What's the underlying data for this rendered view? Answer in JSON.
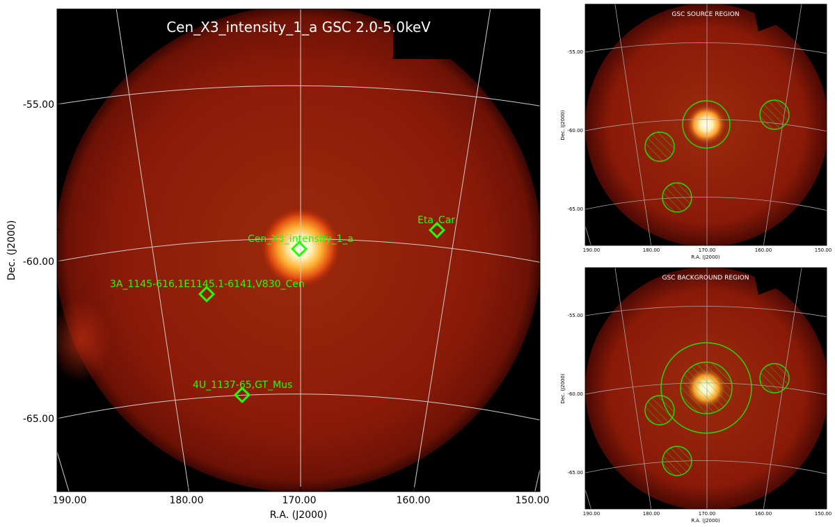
{
  "main": {
    "title": "Cen_X3_intensity_1_a GSC 2.0-5.0keV",
    "ylabel": "Dec. (J2000)",
    "xlabel": "R.A. (J2000)",
    "x_ticks": [
      "190.00",
      "180.00",
      "170.00",
      "160.00",
      "150.00"
    ],
    "y_ticks": [
      "-55.00",
      "-60.00",
      "-65.00"
    ],
    "sources": [
      {
        "label": "Eta_Car",
        "ra": 158.0,
        "dec": -59.0
      },
      {
        "label": "Cen_X3_intensity_1_a",
        "ra": 170.3,
        "dec": -59.6
      },
      {
        "label": "3A_1145-616,1E1145.1-6141,V830_Cen",
        "ra": 178.3,
        "dec": -61.1
      },
      {
        "label": "4U_1137-65,GT_Mus",
        "ra": 175.2,
        "dec": -64.2
      }
    ]
  },
  "source_region": {
    "title": "GSC SOURCE REGION",
    "ylabel": "Dec. (J2000)",
    "xlabel": "R.A. (J2000)",
    "x_ticks": [
      "190.00",
      "180.00",
      "170.00",
      "160.00",
      "150.00"
    ],
    "y_ticks": [
      "-55.00",
      "-60.00",
      "-65.00"
    ]
  },
  "background_region": {
    "title": "GSC BACKGROUND REGION",
    "ylabel": "Dec. (J2000)",
    "xlabel": "R.A. (J2000)",
    "x_ticks": [
      "190.00",
      "180.00",
      "170.00",
      "160.00",
      "150.00"
    ],
    "y_ticks": [
      "-55.00",
      "-60.00",
      "-65.00"
    ]
  },
  "colors": {
    "region": "#22e000",
    "marker": "#22ff00",
    "grid": "#cfcfcf",
    "disk": "#8a1808",
    "source_core": "#ffffff"
  }
}
